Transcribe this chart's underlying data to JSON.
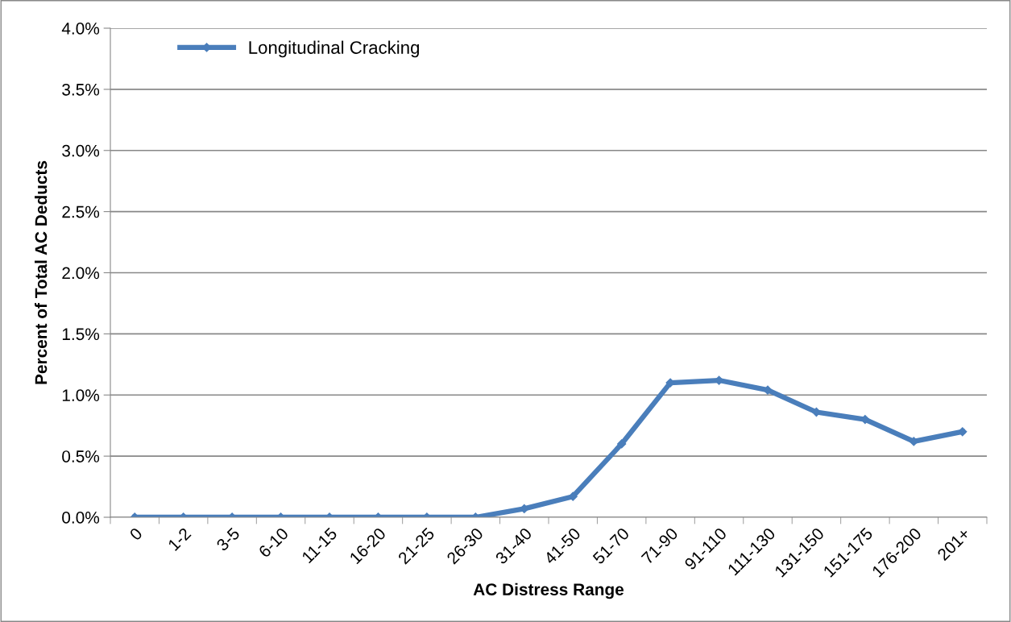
{
  "chart_data": {
    "type": "line",
    "xlabel": "AC Distress Range",
    "ylabel": "Percent of Total AC Deducts",
    "categories": [
      "0",
      "1-2",
      "3-5",
      "6-10",
      "11-15",
      "16-20",
      "21-25",
      "26-30",
      "31-40",
      "41-50",
      "51-70",
      "71-90",
      "91-110",
      "111-130",
      "131-150",
      "151-175",
      "176-200",
      "201+"
    ],
    "series": [
      {
        "name": "Longitudinal Cracking",
        "color": "#4a7ebb",
        "values": [
          0,
          0,
          0,
          0,
          0,
          0,
          0,
          0,
          0.07,
          0.17,
          0.6,
          1.1,
          1.12,
          1.04,
          0.86,
          0.8,
          0.62,
          0.7
        ]
      }
    ],
    "ylim": [
      0,
      4
    ],
    "yticks": [
      {
        "value": 0,
        "label": "0.0%"
      },
      {
        "value": 0.5,
        "label": "0.5%"
      },
      {
        "value": 1,
        "label": "1.0%"
      },
      {
        "value": 1.5,
        "label": "1.5%"
      },
      {
        "value": 2,
        "label": "2.0%"
      },
      {
        "value": 2.5,
        "label": "2.5%"
      },
      {
        "value": 3,
        "label": "3.0%"
      },
      {
        "value": 3.5,
        "label": "3.5%"
      },
      {
        "value": 4,
        "label": "4.0%"
      }
    ],
    "grid": "y",
    "legend": "top left",
    "marker": "diamond",
    "line_style": "solid"
  }
}
